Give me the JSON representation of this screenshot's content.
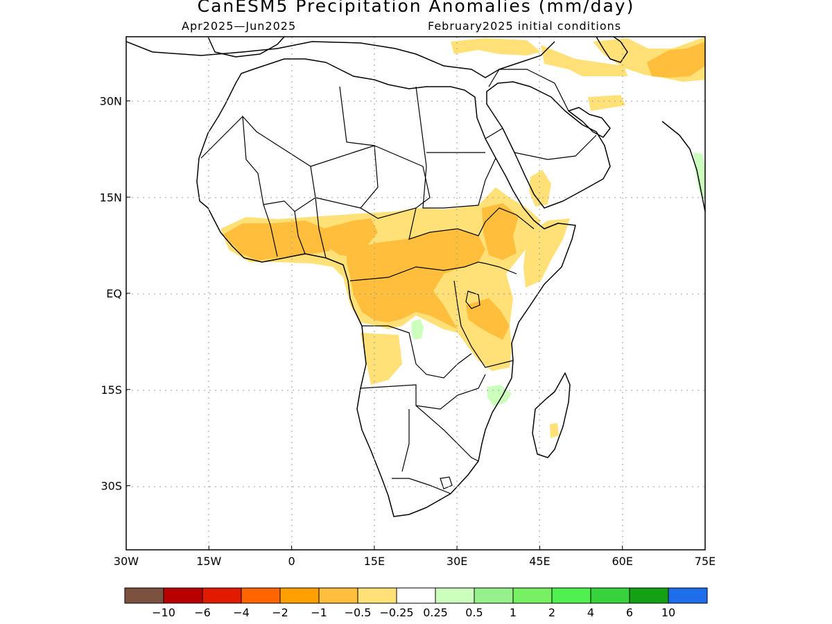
{
  "title": "CanESM5 Precipitation Anomalies (mm/day)",
  "subtitle_left": "Apr2025—Jun2025",
  "subtitle_right": "February2025 initial conditions",
  "map": {
    "region": "Africa",
    "projection": "lat-lon",
    "lon_range": [
      -30,
      75
    ],
    "lat_range": [
      -40,
      40
    ],
    "gridlines": "dotted",
    "lon_ticks": [
      {
        "value": -30,
        "label": "30W"
      },
      {
        "value": -15,
        "label": "15W"
      },
      {
        "value": 0,
        "label": "0"
      },
      {
        "value": 15,
        "label": "15E"
      },
      {
        "value": 30,
        "label": "30E"
      },
      {
        "value": 45,
        "label": "45E"
      },
      {
        "value": 60,
        "label": "60E"
      },
      {
        "value": 75,
        "label": "75E"
      }
    ],
    "lat_ticks": [
      {
        "value": 30,
        "label": "30N"
      },
      {
        "value": 15,
        "label": "15N"
      },
      {
        "value": 0,
        "label": "EQ"
      },
      {
        "value": -15,
        "label": "15S"
      },
      {
        "value": -30,
        "label": "30S"
      }
    ]
  },
  "colorbar": {
    "colors": [
      "#7b5140",
      "#b80000",
      "#e01b00",
      "#ff6600",
      "#ffa000",
      "#ffbe3c",
      "#ffe178",
      "#ffffff",
      "#ccffbe",
      "#96f08c",
      "#78f064",
      "#50f050",
      "#37d23c",
      "#14a014",
      "#1e6eeb"
    ],
    "labels": [
      "−10",
      "−6",
      "−4",
      "−2",
      "−1",
      "−0.5",
      "−0.25",
      "0.25",
      "0.5",
      "1",
      "2",
      "4",
      "6",
      "10"
    ]
  },
  "anomaly_regions": [
    {
      "name": "Sahel / West Africa",
      "category": "-1 to -0.5",
      "color": "#ffbe3c"
    },
    {
      "name": "Central Africa",
      "category": "-1 to -0.5",
      "color": "#ffbe3c"
    },
    {
      "name": "Ethiopian Highlands",
      "category": "-1 to -0.5",
      "color": "#ffbe3c"
    },
    {
      "name": "Angola",
      "category": "-0.5 to -0.25",
      "color": "#ffe178"
    },
    {
      "name": "Central Asia",
      "category": "-1 to -0.5",
      "color": "#ffbe3c"
    },
    {
      "name": "Zambia",
      "category": "0.25 to 0.5",
      "color": "#ccffbe"
    },
    {
      "name": "Mozambique",
      "category": "0.25 to 0.5",
      "color": "#ccffbe"
    },
    {
      "name": "West India",
      "category": "0.25 to 0.5",
      "color": "#ccffbe"
    }
  ]
}
